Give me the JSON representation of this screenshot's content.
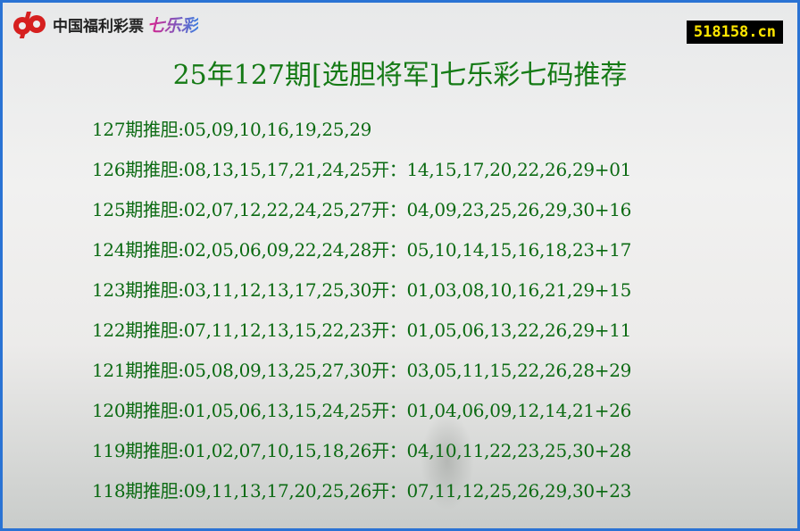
{
  "header": {
    "logo_text": "中国福利彩票",
    "logo_game": "七乐彩",
    "site": "518158.cn"
  },
  "title": "25年127期[选胆将军]七乐彩七码推荐",
  "colors": {
    "border": "#2a73d4",
    "text": "#0b6a12",
    "logo_red": "#d6201f"
  },
  "rows": [
    "127期推胆:05,09,10,16,19,25,29",
    "126期推胆:08,13,15,17,21,24,25开：14,15,17,20,22,26,29+01",
    "125期推胆:02,07,12,22,24,25,27开：04,09,23,25,26,29,30+16",
    "124期推胆:02,05,06,09,22,24,28开：05,10,14,15,16,18,23+17",
    "123期推胆:03,11,12,13,17,25,30开：01,03,08,10,16,21,29+15",
    "122期推胆:07,11,12,13,15,22,23开：01,05,06,13,22,26,29+11",
    "121期推胆:05,08,09,13,25,27,30开：03,05,11,15,22,26,28+29",
    "120期推胆:01,05,06,13,15,24,25开：01,04,06,09,12,14,21+26",
    "119期推胆:01,02,07,10,15,18,26开：04,10,11,22,23,25,30+28",
    "118期推胆:09,11,13,17,20,25,26开：07,11,12,25,26,29,30+23"
  ]
}
